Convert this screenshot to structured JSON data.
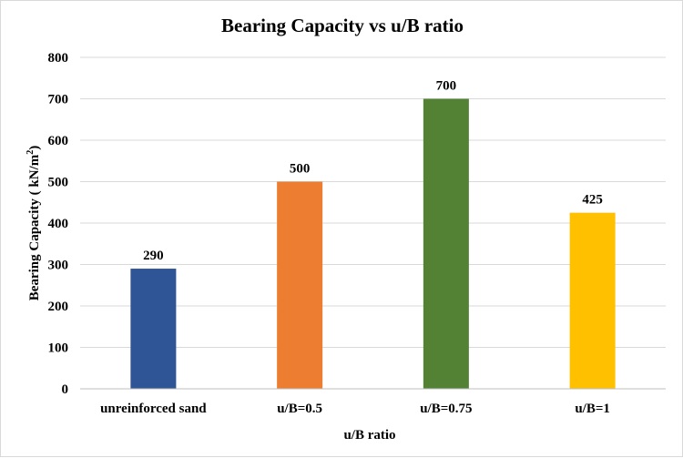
{
  "chart_data": {
    "type": "bar",
    "title": "Bearing Capacity vs u/B ratio",
    "xlabel": "u/B ratio",
    "ylabel": {
      "main": "Bearing Capacity (  kN/m",
      "superscript": "2",
      "close": ")"
    },
    "categories": [
      "unreinforced sand",
      "u/B=0.5",
      "u/B=0.75",
      "u/B=1"
    ],
    "values": [
      290,
      500,
      700,
      425
    ],
    "data_labels": [
      "290",
      "500",
      "700",
      "425"
    ],
    "colors": [
      "#2F5597",
      "#ED7D31",
      "#548235",
      "#FFC000"
    ],
    "ylim": [
      0,
      800
    ],
    "yticks": [
      0,
      100,
      200,
      300,
      400,
      500,
      600,
      700,
      800
    ],
    "ytick_labels": [
      "0",
      "100",
      "200",
      "300",
      "400",
      "500",
      "600",
      "700",
      "800"
    ],
    "grid": true,
    "legend": "none"
  }
}
